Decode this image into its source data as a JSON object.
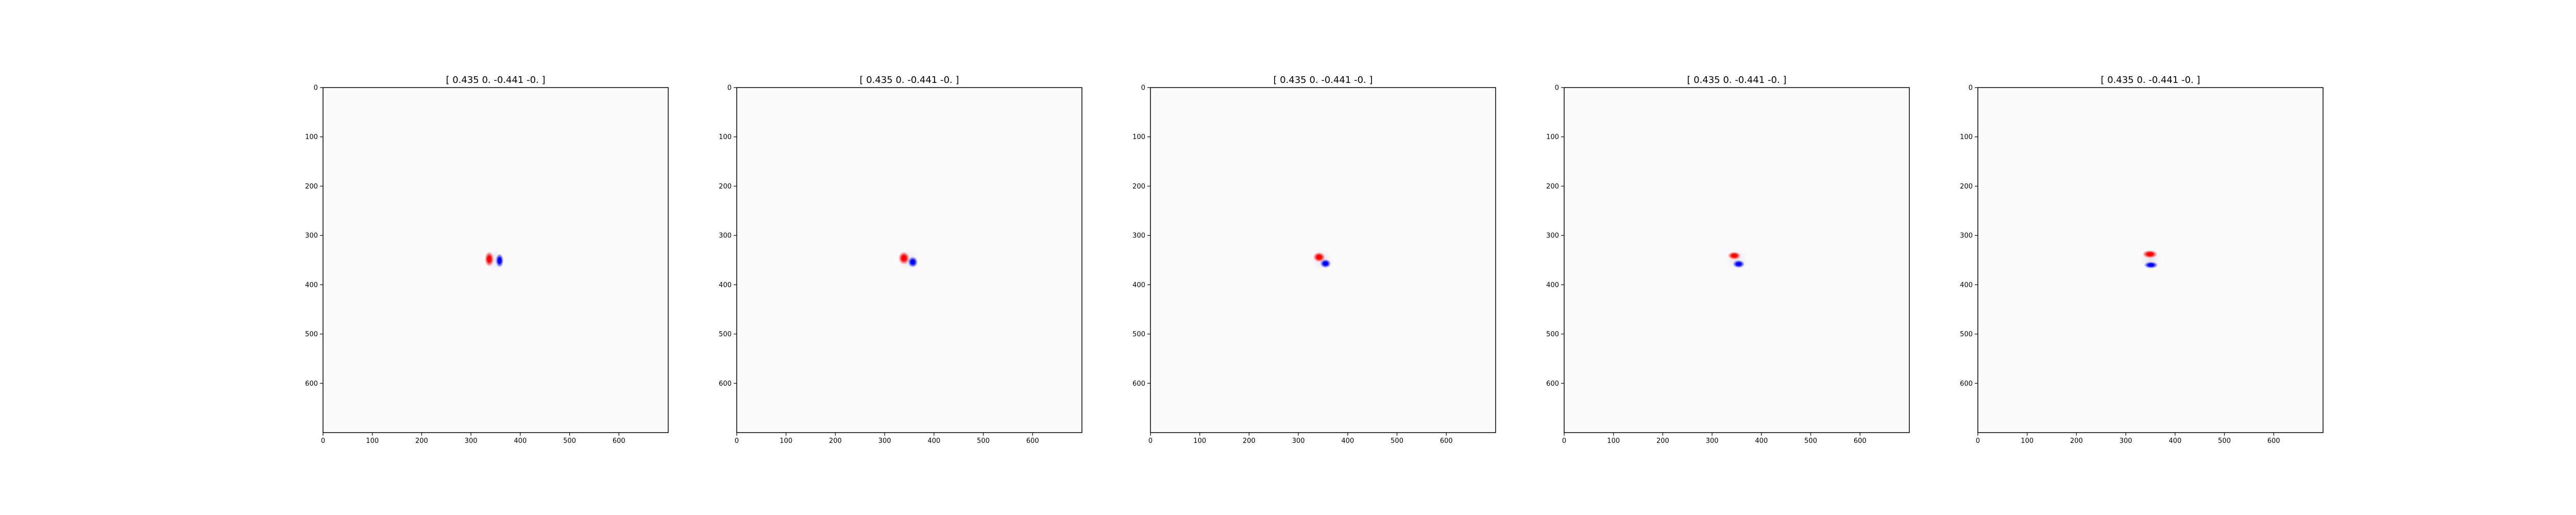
{
  "figure": {
    "background": "#ffffff",
    "axis_color": "#000000",
    "field_background": "#fbfbfb"
  },
  "chart_data": [
    {
      "type": "heatmap",
      "title": "[ 0.435  0.    -0.441 -0.  ]",
      "xlabel": "",
      "ylabel": "",
      "xlim": [
        0,
        700
      ],
      "ylim": [
        700,
        0
      ],
      "x_ticks": [
        0,
        100,
        200,
        300,
        400,
        500,
        600
      ],
      "y_ticks": [
        0,
        100,
        200,
        300,
        400,
        500,
        600
      ],
      "grid": false,
      "colormap": "bwr",
      "positive_color": "#ff0000",
      "negative_color": "#0000ff",
      "blobs": [
        {
          "sign": "positive",
          "cx": 337,
          "cy": 348,
          "rx": 9,
          "ry": 15
        },
        {
          "sign": "negative",
          "cx": 358,
          "cy": 351,
          "rx": 8,
          "ry": 14
        }
      ]
    },
    {
      "type": "heatmap",
      "title": "[ 0.435  0.    -0.441 -0.  ]",
      "xlabel": "",
      "ylabel": "",
      "xlim": [
        0,
        700
      ],
      "ylim": [
        700,
        0
      ],
      "x_ticks": [
        0,
        100,
        200,
        300,
        400,
        500,
        600
      ],
      "y_ticks": [
        0,
        100,
        200,
        300,
        400,
        500,
        600
      ],
      "grid": false,
      "colormap": "bwr",
      "positive_color": "#ff0000",
      "negative_color": "#0000ff",
      "blobs": [
        {
          "sign": "positive",
          "cx": 339,
          "cy": 346,
          "rx": 11,
          "ry": 13
        },
        {
          "sign": "negative",
          "cx": 357,
          "cy": 354,
          "rx": 10,
          "ry": 11
        }
      ]
    },
    {
      "type": "heatmap",
      "title": "[ 0.435  0.    -0.441 -0.  ]",
      "xlabel": "",
      "ylabel": "",
      "xlim": [
        0,
        700
      ],
      "ylim": [
        700,
        0
      ],
      "x_ticks": [
        0,
        100,
        200,
        300,
        400,
        500,
        600
      ],
      "y_ticks": [
        0,
        100,
        200,
        300,
        400,
        500,
        600
      ],
      "grid": false,
      "colormap": "bwr",
      "positive_color": "#ff0000",
      "negative_color": "#0000ff",
      "blobs": [
        {
          "sign": "positive",
          "cx": 342,
          "cy": 344,
          "rx": 12,
          "ry": 10
        },
        {
          "sign": "negative",
          "cx": 355,
          "cy": 357,
          "rx": 11,
          "ry": 9
        }
      ]
    },
    {
      "type": "heatmap",
      "title": "[ 0.435  0.    -0.441 -0.  ]",
      "xlabel": "",
      "ylabel": "",
      "xlim": [
        0,
        700
      ],
      "ylim": [
        700,
        0
      ],
      "x_ticks": [
        0,
        100,
        200,
        300,
        400,
        500,
        600
      ],
      "y_ticks": [
        0,
        100,
        200,
        300,
        400,
        500,
        600
      ],
      "grid": false,
      "colormap": "bwr",
      "positive_color": "#ff0000",
      "negative_color": "#0000ff",
      "blobs": [
        {
          "sign": "positive",
          "cx": 345,
          "cy": 341,
          "rx": 13,
          "ry": 8
        },
        {
          "sign": "negative",
          "cx": 354,
          "cy": 358,
          "rx": 12,
          "ry": 8
        }
      ]
    },
    {
      "type": "heatmap",
      "title": "[ 0.435  0.    -0.441 -0.  ]",
      "xlabel": "",
      "ylabel": "",
      "xlim": [
        0,
        700
      ],
      "ylim": [
        700,
        0
      ],
      "x_ticks": [
        0,
        100,
        200,
        300,
        400,
        500,
        600
      ],
      "y_ticks": [
        0,
        100,
        200,
        300,
        400,
        500,
        600
      ],
      "grid": false,
      "colormap": "bwr",
      "positive_color": "#ff0000",
      "negative_color": "#0000ff",
      "blobs": [
        {
          "sign": "positive",
          "cx": 349,
          "cy": 338,
          "rx": 15,
          "ry": 8
        },
        {
          "sign": "negative",
          "cx": 351,
          "cy": 360,
          "rx": 14,
          "ry": 7
        }
      ]
    }
  ]
}
